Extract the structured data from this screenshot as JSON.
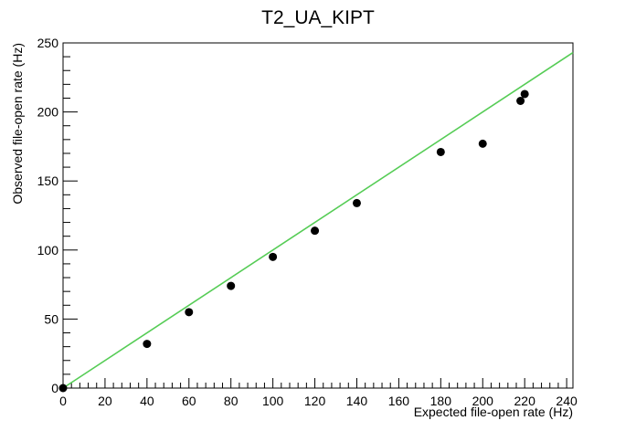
{
  "chart_data": {
    "type": "scatter",
    "title": "T2_UA_KIPT",
    "xlabel": "Expected file-open rate (Hz)",
    "ylabel": "Observed file-open rate (Hz)",
    "xlim": [
      0,
      243
    ],
    "ylim": [
      0,
      250
    ],
    "x_ticks": [
      0,
      20,
      40,
      60,
      80,
      100,
      120,
      140,
      160,
      180,
      200,
      220,
      240
    ],
    "y_ticks": [
      0,
      50,
      100,
      150,
      200,
      250
    ],
    "points": {
      "x": [
        0,
        40,
        60,
        80,
        100,
        120,
        140,
        180,
        200,
        218,
        220
      ],
      "y": [
        0,
        32,
        55,
        74,
        95,
        114,
        134,
        171,
        177,
        208,
        213
      ]
    },
    "reference_line": {
      "x": [
        0,
        243
      ],
      "y": [
        0,
        243
      ]
    },
    "grid": false,
    "colors": {
      "points": "#000000",
      "line": "#55cc55"
    }
  }
}
